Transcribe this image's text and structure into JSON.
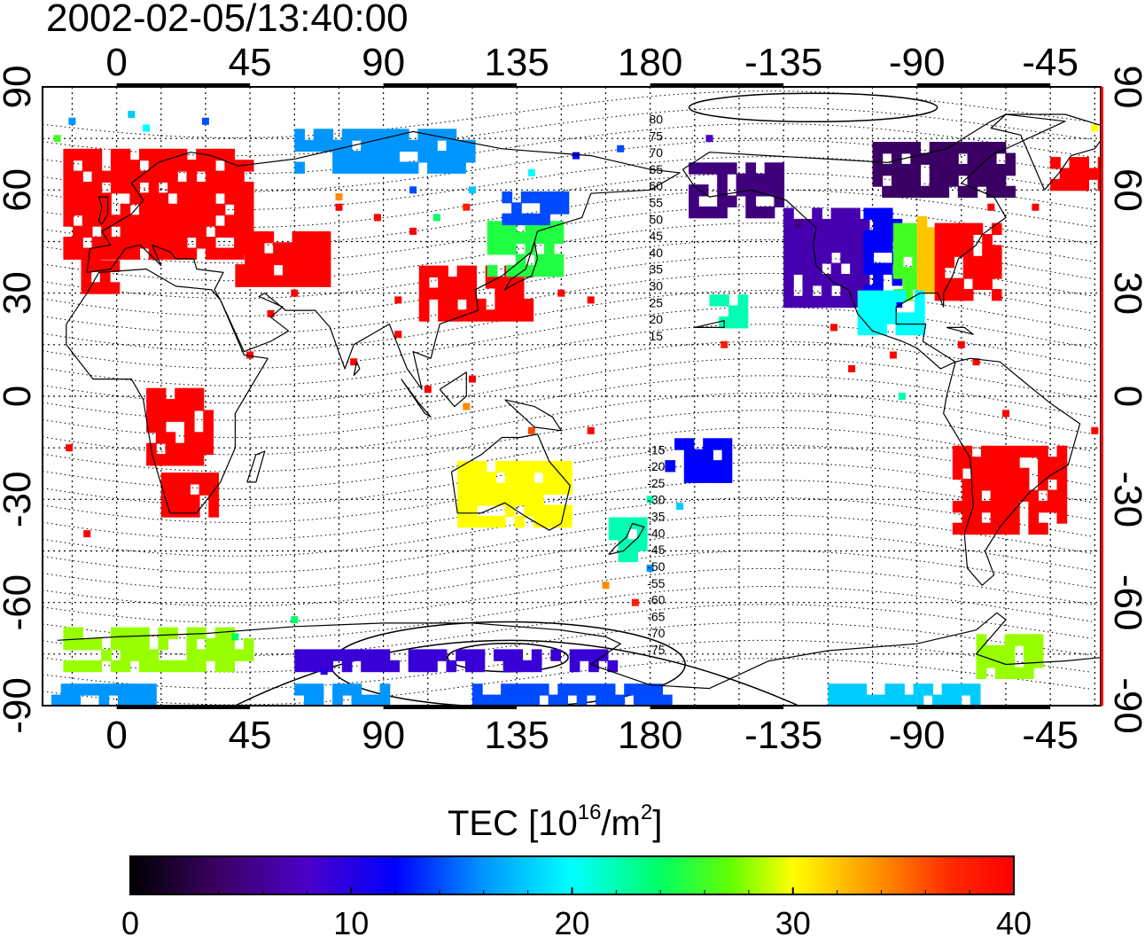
{
  "title": "2002-02-05/13:40:00",
  "top_lon_labels": [
    "0",
    "45",
    "90",
    "135",
    "180",
    "-135",
    "-90",
    "-45"
  ],
  "bottom_lon_labels": [
    "0",
    "45",
    "90",
    "135",
    "180",
    "-135",
    "-90",
    "-45"
  ],
  "left_lat_labels": [
    "90",
    "60",
    "30",
    "0",
    "-30",
    "-60",
    "-90"
  ],
  "right_lat_labels": [
    "90",
    "60",
    "30",
    "0",
    "-30",
    "-60",
    "-90"
  ],
  "contour_labels": [
    "80",
    "75",
    "70",
    "65",
    "60",
    "55",
    "50",
    "45",
    "40",
    "35",
    "30",
    "25",
    "20",
    "15",
    "-15",
    "-20",
    "-25",
    "-30",
    "-35",
    "-40",
    "-45",
    "-50",
    "-55",
    "-60",
    "-65",
    "-70",
    "-75"
  ],
  "colorbar": {
    "title_main": "TEC  [10",
    "title_exp1": "16",
    "title_mid": "/m",
    "title_exp2": "2",
    "title_end": "]",
    "ticks": [
      "0",
      "10",
      "20",
      "30",
      "40"
    ],
    "min": 0,
    "max": 40,
    "colormap": "jet-like: black-purple-blue-cyan-green-yellow-orange-red"
  },
  "map": {
    "projection": "equirectangular",
    "lon_range_display": [
      -25,
      332
    ],
    "lat_range": [
      -90,
      90
    ],
    "grid": "dotted every 15 degrees",
    "coastlines": true
  },
  "tec_regions": [
    {
      "lon": [
        -18,
        45
      ],
      "lat": [
        40,
        72
      ],
      "value": 40
    },
    {
      "lon": [
        -12,
        0
      ],
      "lat": [
        30,
        40
      ],
      "value": 40
    },
    {
      "lon": [
        40,
        70
      ],
      "lat": [
        32,
        45
      ],
      "value": 40
    },
    {
      "lon": [
        102,
        138
      ],
      "lat": [
        22,
        35
      ],
      "value": 40
    },
    {
      "lon": [
        125,
        148
      ],
      "lat": [
        35,
        48
      ],
      "value": 25
    },
    {
      "lon": [
        130,
        150
      ],
      "lat": [
        50,
        58
      ],
      "value": 14
    },
    {
      "lon": [
        225,
        252
      ],
      "lat": [
        26,
        52
      ],
      "value": 7
    },
    {
      "lon": [
        252,
        262
      ],
      "lat": [
        26,
        52
      ],
      "value": 12
    },
    {
      "lon": [
        262,
        270
      ],
      "lat": [
        28,
        50
      ],
      "value": 26
    },
    {
      "lon": [
        270,
        276
      ],
      "lat": [
        30,
        50
      ],
      "value": 32
    },
    {
      "lon": [
        276,
        298
      ],
      "lat": [
        28,
        48
      ],
      "value": 40
    },
    {
      "lon": [
        193,
        222
      ],
      "lat": [
        52,
        68
      ],
      "value": 5
    },
    {
      "lon": [
        250,
        270
      ],
      "lat": [
        18,
        28
      ],
      "value": 20
    },
    {
      "lon": [
        10,
        30
      ],
      "lat": [
        -20,
        0
      ],
      "value": 40
    },
    {
      "lon": [
        15,
        32
      ],
      "lat": [
        -35,
        -25
      ],
      "value": 40
    },
    {
      "lon": [
        282,
        318
      ],
      "lat": [
        -40,
        -15
      ],
      "value": 40
    },
    {
      "lon": [
        115,
        152
      ],
      "lat": [
        -38,
        -20
      ],
      "value": 30
    },
    {
      "lon": [
        166,
        178
      ],
      "lat": [
        -48,
        -38
      ],
      "value": 22
    },
    {
      "lon": [
        -22,
        10
      ],
      "lat": [
        -90,
        -86
      ],
      "value": 16
    },
    {
      "lon": [
        60,
        90
      ],
      "lat": [
        -90,
        -86
      ],
      "value": 16
    },
    {
      "lon": [
        120,
        185
      ],
      "lat": [
        -90,
        -86
      ],
      "value": 14
    },
    {
      "lon": [
        240,
        290
      ],
      "lat": [
        -90,
        -86
      ],
      "value": 18
    },
    {
      "lon": [
        60,
        170
      ],
      "lat": [
        -80,
        -74
      ],
      "value": 9
    },
    {
      "lon": [
        -18,
        45
      ],
      "lat": [
        -80,
        -70
      ],
      "value": 28
    },
    {
      "lon": [
        290,
        310
      ],
      "lat": [
        -82,
        -70
      ],
      "value": 28
    },
    {
      "lon": [
        200,
        212
      ],
      "lat": [
        20,
        28
      ],
      "value": 22
    },
    {
      "lon": [
        185,
        205
      ],
      "lat": [
        -25,
        -15
      ],
      "value": 12
    },
    {
      "lon": [
        255,
        300
      ],
      "lat": [
        58,
        72
      ],
      "value": 4
    },
    {
      "lon": [
        60,
        120
      ],
      "lat": [
        65,
        75
      ],
      "value": 16
    },
    {
      "lon": [
        315,
        332
      ],
      "lat": [
        60,
        68
      ],
      "value": 40
    }
  ],
  "tec_dots": [
    [
      75,
      55,
      40
    ],
    [
      88,
      52,
      40
    ],
    [
      100,
      48,
      40
    ],
    [
      60,
      30,
      40
    ],
    [
      95,
      28,
      40
    ],
    [
      120,
      5,
      40
    ],
    [
      118,
      -3,
      34
    ],
    [
      105,
      2,
      40
    ],
    [
      80,
      10,
      40
    ],
    [
      95,
      18,
      40
    ],
    [
      52,
      24,
      40
    ],
    [
      45,
      12,
      40
    ],
    [
      -16,
      -15,
      40
    ],
    [
      -10,
      -40,
      40
    ],
    [
      40,
      -70,
      24
    ],
    [
      60,
      -65,
      24
    ],
    [
      70,
      -80,
      10
    ],
    [
      230,
      50,
      5
    ],
    [
      242,
      20,
      40
    ],
    [
      300,
      -5,
      40
    ],
    [
      330,
      -10,
      40
    ],
    [
      265,
      0,
      22
    ],
    [
      180,
      -30,
      22
    ],
    [
      190,
      -32,
      18
    ],
    [
      140,
      -10,
      36
    ],
    [
      160,
      -10,
      40
    ],
    [
      175,
      -60,
      38
    ],
    [
      165,
      -55,
      34
    ],
    [
      180,
      -50,
      16
    ],
    [
      100,
      60,
      14
    ],
    [
      120,
      60,
      18
    ],
    [
      140,
      65,
      20
    ],
    [
      155,
      70,
      12
    ],
    [
      170,
      72,
      14
    ],
    [
      200,
      75,
      8
    ],
    [
      -20,
      75,
      26
    ],
    [
      -15,
      80,
      16
    ],
    [
      10,
      78,
      20
    ],
    [
      30,
      80,
      14
    ],
    [
      5,
      82,
      18
    ],
    [
      330,
      78,
      30
    ],
    [
      310,
      55,
      40
    ],
    [
      295,
      55,
      40
    ],
    [
      285,
      15,
      40
    ],
    [
      290,
      10,
      40
    ],
    [
      75,
      58,
      34
    ],
    [
      108,
      52,
      24
    ],
    [
      118,
      55,
      38
    ],
    [
      150,
      30,
      40
    ],
    [
      160,
      28,
      40
    ],
    [
      205,
      15,
      38
    ],
    [
      -8,
      58,
      40
    ],
    [
      248,
      8,
      40
    ],
    [
      262,
      12,
      40
    ]
  ]
}
